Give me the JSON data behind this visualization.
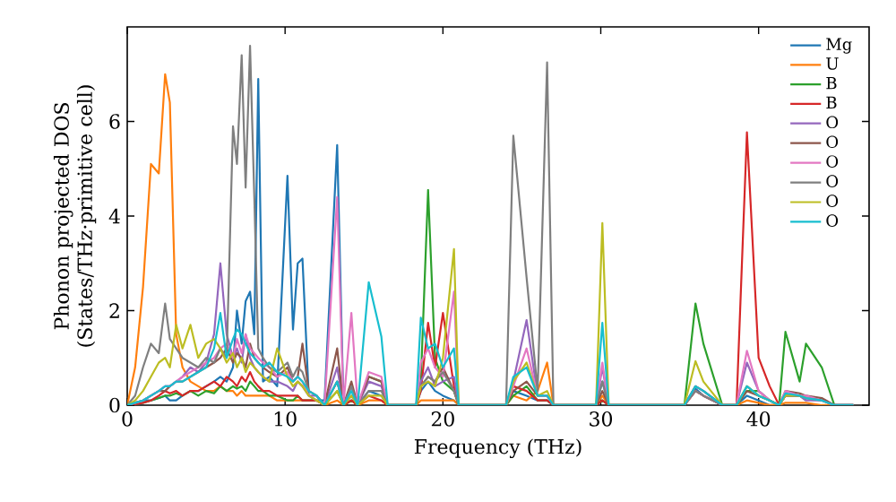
{
  "chart_data": {
    "type": "line",
    "xlabel": "Frequency (THz)",
    "ylabel": "Phonon projected DOS (States/THz·primitive cell)",
    "xlim": [
      0,
      47
    ],
    "ylim": [
      0,
      8
    ],
    "xticks": [
      0,
      10,
      20,
      30,
      40
    ],
    "yticks": [
      0,
      2,
      4,
      6
    ],
    "legend": "top right",
    "x": [
      0,
      0.5,
      1,
      1.5,
      2,
      2.4,
      2.7,
      3.1,
      3.5,
      4,
      4.5,
      5,
      5.5,
      5.9,
      6.3,
      6.7,
      6.95,
      7.25,
      7.5,
      7.78,
      8.05,
      8.3,
      8.6,
      9,
      9.5,
      10.15,
      10.5,
      10.8,
      11.1,
      11.5,
      12,
      12.5,
      13.3,
      13.7,
      14.2,
      14.6,
      15.3,
      16.1,
      16.5,
      18.3,
      18.6,
      19.06,
      19.5,
      20.0,
      20.7,
      21.0,
      24.0,
      24.46,
      25.3,
      26.0,
      26.6,
      27.0,
      29.7,
      30.1,
      30.5,
      35.3,
      36.0,
      36.5,
      37.7,
      38.6,
      39.26,
      40.0,
      40.7,
      41.3,
      41.7,
      42.6,
      43.0,
      44.0,
      44.8,
      46
    ],
    "series": [
      {
        "name": "Mg",
        "color": "#1f77b4",
        "values": [
          0,
          0.05,
          0.1,
          0.1,
          0.15,
          0.2,
          0.1,
          0.1,
          0.2,
          0.3,
          0.3,
          0.4,
          0.5,
          0.6,
          0.5,
          0.8,
          2.0,
          1.3,
          2.2,
          2.4,
          1.5,
          6.9,
          0.5,
          0.6,
          0.4,
          4.85,
          1.6,
          3.0,
          3.1,
          0.2,
          0.1,
          0.1,
          5.5,
          0,
          0.2,
          0,
          0.3,
          0.2,
          0,
          0,
          0.3,
          0.5,
          0.3,
          0.2,
          0.1,
          0,
          0,
          0.3,
          0.2,
          0.1,
          0.1,
          0,
          0,
          0.5,
          0,
          0,
          0.35,
          0.2,
          0,
          0,
          0.2,
          0.1,
          0,
          0,
          0.2,
          0.2,
          0.1,
          null,
          null,
          null
        ]
      },
      {
        "name": "U",
        "color": "#ff7f0e",
        "values": [
          0,
          0.8,
          2.5,
          5.1,
          4.9,
          7.0,
          6.4,
          1.5,
          0.8,
          0.5,
          0.4,
          0.3,
          0.3,
          0.4,
          0.3,
          0.3,
          0.2,
          0.3,
          0.2,
          0.2,
          0.2,
          0.2,
          0.2,
          0.2,
          0.1,
          0.1,
          0.1,
          0.1,
          0.1,
          0.1,
          0.1,
          0,
          0.1,
          0,
          0.1,
          0,
          0.1,
          0.1,
          0,
          0,
          0.1,
          0.1,
          0.1,
          0.1,
          0.1,
          0,
          0,
          0.2,
          0.1,
          0.3,
          0.9,
          0,
          0,
          0.2,
          0,
          0,
          0.3,
          0.2,
          0,
          0,
          0.1,
          0.05,
          0,
          0,
          0.05,
          0.05,
          0.05,
          0,
          0,
          0
        ]
      },
      {
        "name": "B",
        "color": "#2ca02c",
        "values": [
          0,
          0.02,
          0.05,
          0.1,
          0.15,
          0.2,
          0.2,
          0.25,
          0.2,
          0.3,
          0.2,
          0.3,
          0.25,
          0.4,
          0.3,
          0.4,
          0.35,
          0.4,
          0.3,
          0.5,
          0.4,
          0.3,
          0.3,
          0.2,
          0.2,
          0.1,
          0.1,
          0.2,
          0.1,
          0.1,
          0.1,
          0,
          0.3,
          0,
          0.1,
          0,
          0.6,
          0.5,
          0,
          0,
          0.5,
          4.55,
          1.0,
          0.5,
          0.3,
          0,
          0,
          0.2,
          0.4,
          0.1,
          0.1,
          0,
          0,
          0.1,
          0,
          0,
          2.15,
          1.3,
          0,
          0,
          0.3,
          0.3,
          0.1,
          0,
          1.55,
          0.5,
          1.3,
          0.8,
          0,
          0
        ]
      },
      {
        "name": "B",
        "color": "#d62728",
        "values": [
          0,
          0.02,
          0.05,
          0.1,
          0.2,
          0.3,
          0.25,
          0.3,
          0.2,
          0.3,
          0.3,
          0.4,
          0.5,
          0.4,
          0.6,
          0.5,
          0.4,
          0.6,
          0.5,
          0.7,
          0.5,
          0.4,
          0.3,
          0.3,
          0.2,
          0.2,
          0.2,
          0.2,
          0.1,
          0.1,
          0.1,
          0,
          0.5,
          0,
          0.1,
          0,
          0.2,
          0.1,
          0,
          0,
          0.3,
          1.74,
          0.8,
          1.95,
          0.4,
          0,
          0,
          0.4,
          0.3,
          0.1,
          0.1,
          0,
          0,
          0.1,
          0,
          0,
          0.3,
          0.2,
          0,
          0,
          5.77,
          1.0,
          0.4,
          0,
          0.2,
          0.2,
          null,
          null,
          null,
          null
        ]
      },
      {
        "name": "O",
        "color": "#9467bd",
        "values": [
          0,
          0.05,
          0.1,
          0.2,
          0.3,
          0.4,
          0.4,
          0.5,
          0.6,
          0.8,
          0.7,
          0.9,
          1.5,
          3.0,
          1.5,
          1.0,
          1.2,
          0.9,
          1.5,
          1.0,
          0.8,
          0.7,
          0.6,
          0.5,
          0.5,
          0.4,
          0.3,
          0.5,
          0.4,
          0.2,
          0.2,
          0,
          0.8,
          0,
          0.4,
          0,
          0.5,
          0.4,
          0,
          0,
          0.5,
          0.8,
          0.4,
          0.5,
          0.6,
          0,
          0,
          0.5,
          1.8,
          0.2,
          0.2,
          0,
          0,
          0.8,
          0,
          0,
          0.4,
          0.3,
          0,
          0,
          0.9,
          0.3,
          0.1,
          0,
          0.2,
          0.2,
          0.1,
          0.1,
          0,
          0
        ]
      },
      {
        "name": "O",
        "color": "#8c564b",
        "values": [
          0,
          0.05,
          0.1,
          0.2,
          0.3,
          0.3,
          0.4,
          0.5,
          0.5,
          0.6,
          0.7,
          0.8,
          0.9,
          1.0,
          1.2,
          0.9,
          1.1,
          1.0,
          0.8,
          1.3,
          1.0,
          0.9,
          0.8,
          0.7,
          0.6,
          0.8,
          0.5,
          0.6,
          1.3,
          0.3,
          0.2,
          0,
          1.2,
          0,
          0.5,
          0,
          0.6,
          0.5,
          0,
          0,
          0.4,
          0.6,
          0.5,
          0.8,
          0.3,
          0,
          0,
          0.3,
          0.5,
          0.2,
          0.2,
          0,
          0,
          0.3,
          0,
          0,
          0.4,
          0.3,
          0,
          0,
          0.3,
          0.2,
          0.1,
          0,
          0.3,
          0.25,
          0.2,
          0.15,
          0,
          0
        ]
      },
      {
        "name": "O",
        "color": "#e377c2",
        "values": [
          0,
          0.05,
          0.1,
          0.2,
          0.3,
          0.4,
          0.4,
          0.5,
          0.6,
          0.7,
          0.8,
          0.9,
          1.0,
          1.2,
          1.3,
          1.0,
          1.4,
          1.1,
          1.5,
          1.2,
          1.1,
          1.0,
          0.9,
          0.8,
          0.6,
          0.7,
          0.5,
          0.6,
          0.5,
          0.2,
          0.1,
          0,
          4.4,
          0,
          1.95,
          0,
          0.7,
          0.6,
          0,
          0,
          0.9,
          1.2,
          0.8,
          0.6,
          2.4,
          0,
          0,
          0.4,
          1.2,
          0.2,
          0.2,
          0,
          0,
          0.9,
          0,
          0,
          0.3,
          0.2,
          0,
          0,
          1.15,
          0.3,
          0.1,
          0,
          0.3,
          0.2,
          0.2,
          0.1,
          0,
          0
        ]
      },
      {
        "name": "O",
        "color": "#7f7f7f",
        "values": [
          0,
          0.2,
          0.8,
          1.3,
          1.1,
          2.15,
          1.4,
          1.2,
          1.0,
          0.9,
          0.8,
          1.0,
          0.9,
          1.2,
          1.0,
          5.9,
          5.1,
          7.4,
          4.6,
          7.6,
          4.4,
          1.2,
          1.0,
          0.8,
          0.7,
          0.9,
          0.6,
          0.8,
          0.7,
          0.3,
          0.2,
          0,
          0.5,
          0,
          0.4,
          0,
          0.3,
          0.3,
          0,
          0,
          0.4,
          0.6,
          0.5,
          0.7,
          0.3,
          0,
          0,
          5.7,
          2.7,
          0.3,
          7.25,
          0,
          0,
          0.5,
          0,
          0,
          0.3,
          0.2,
          0,
          0,
          0.4,
          0.2,
          0.1,
          0,
          0.2,
          0.2,
          0.15,
          0.1,
          0,
          0
        ]
      },
      {
        "name": "O",
        "color": "#bcbd22",
        "values": [
          0,
          0.1,
          0.3,
          0.6,
          0.9,
          1.0,
          0.8,
          1.7,
          1.2,
          1.7,
          1.0,
          1.3,
          1.4,
          1.2,
          0.9,
          1.1,
          0.8,
          1.0,
          0.7,
          0.9,
          0.8,
          0.7,
          0.6,
          0.5,
          1.2,
          0.6,
          0.4,
          0.5,
          0.4,
          0.2,
          0.1,
          0,
          0.3,
          0,
          0.2,
          0,
          0.2,
          0.2,
          0,
          0,
          0.4,
          0.5,
          0.4,
          1.0,
          3.3,
          0,
          0,
          0.5,
          0.9,
          0.2,
          0.3,
          0,
          0,
          3.85,
          0,
          0,
          0.93,
          0.5,
          0,
          0,
          0.4,
          0.2,
          0.1,
          0,
          0.2,
          0.2,
          0.15,
          null,
          null,
          null
        ]
      },
      {
        "name": "O",
        "color": "#17becf",
        "values": [
          0,
          0.05,
          0.1,
          0.2,
          0.3,
          0.4,
          0.4,
          0.5,
          0.5,
          0.6,
          0.7,
          0.8,
          1.2,
          1.95,
          1.0,
          1.4,
          1.6,
          1.5,
          1.3,
          1.1,
          1.0,
          0.9,
          0.8,
          0.9,
          0.7,
          0.6,
          0.5,
          0.6,
          0.5,
          0.3,
          0.2,
          0,
          0.5,
          0,
          0.3,
          0,
          2.6,
          1.45,
          0,
          0,
          1.85,
          1.2,
          1.3,
          0.8,
          1.2,
          0,
          0,
          0.6,
          0.8,
          0.2,
          0.2,
          0,
          0,
          1.74,
          0,
          0,
          0.4,
          0.3,
          0,
          0,
          0.4,
          0.2,
          0.1,
          0,
          0.25,
          0.2,
          0.15,
          0.1,
          0,
          0
        ]
      }
    ]
  }
}
